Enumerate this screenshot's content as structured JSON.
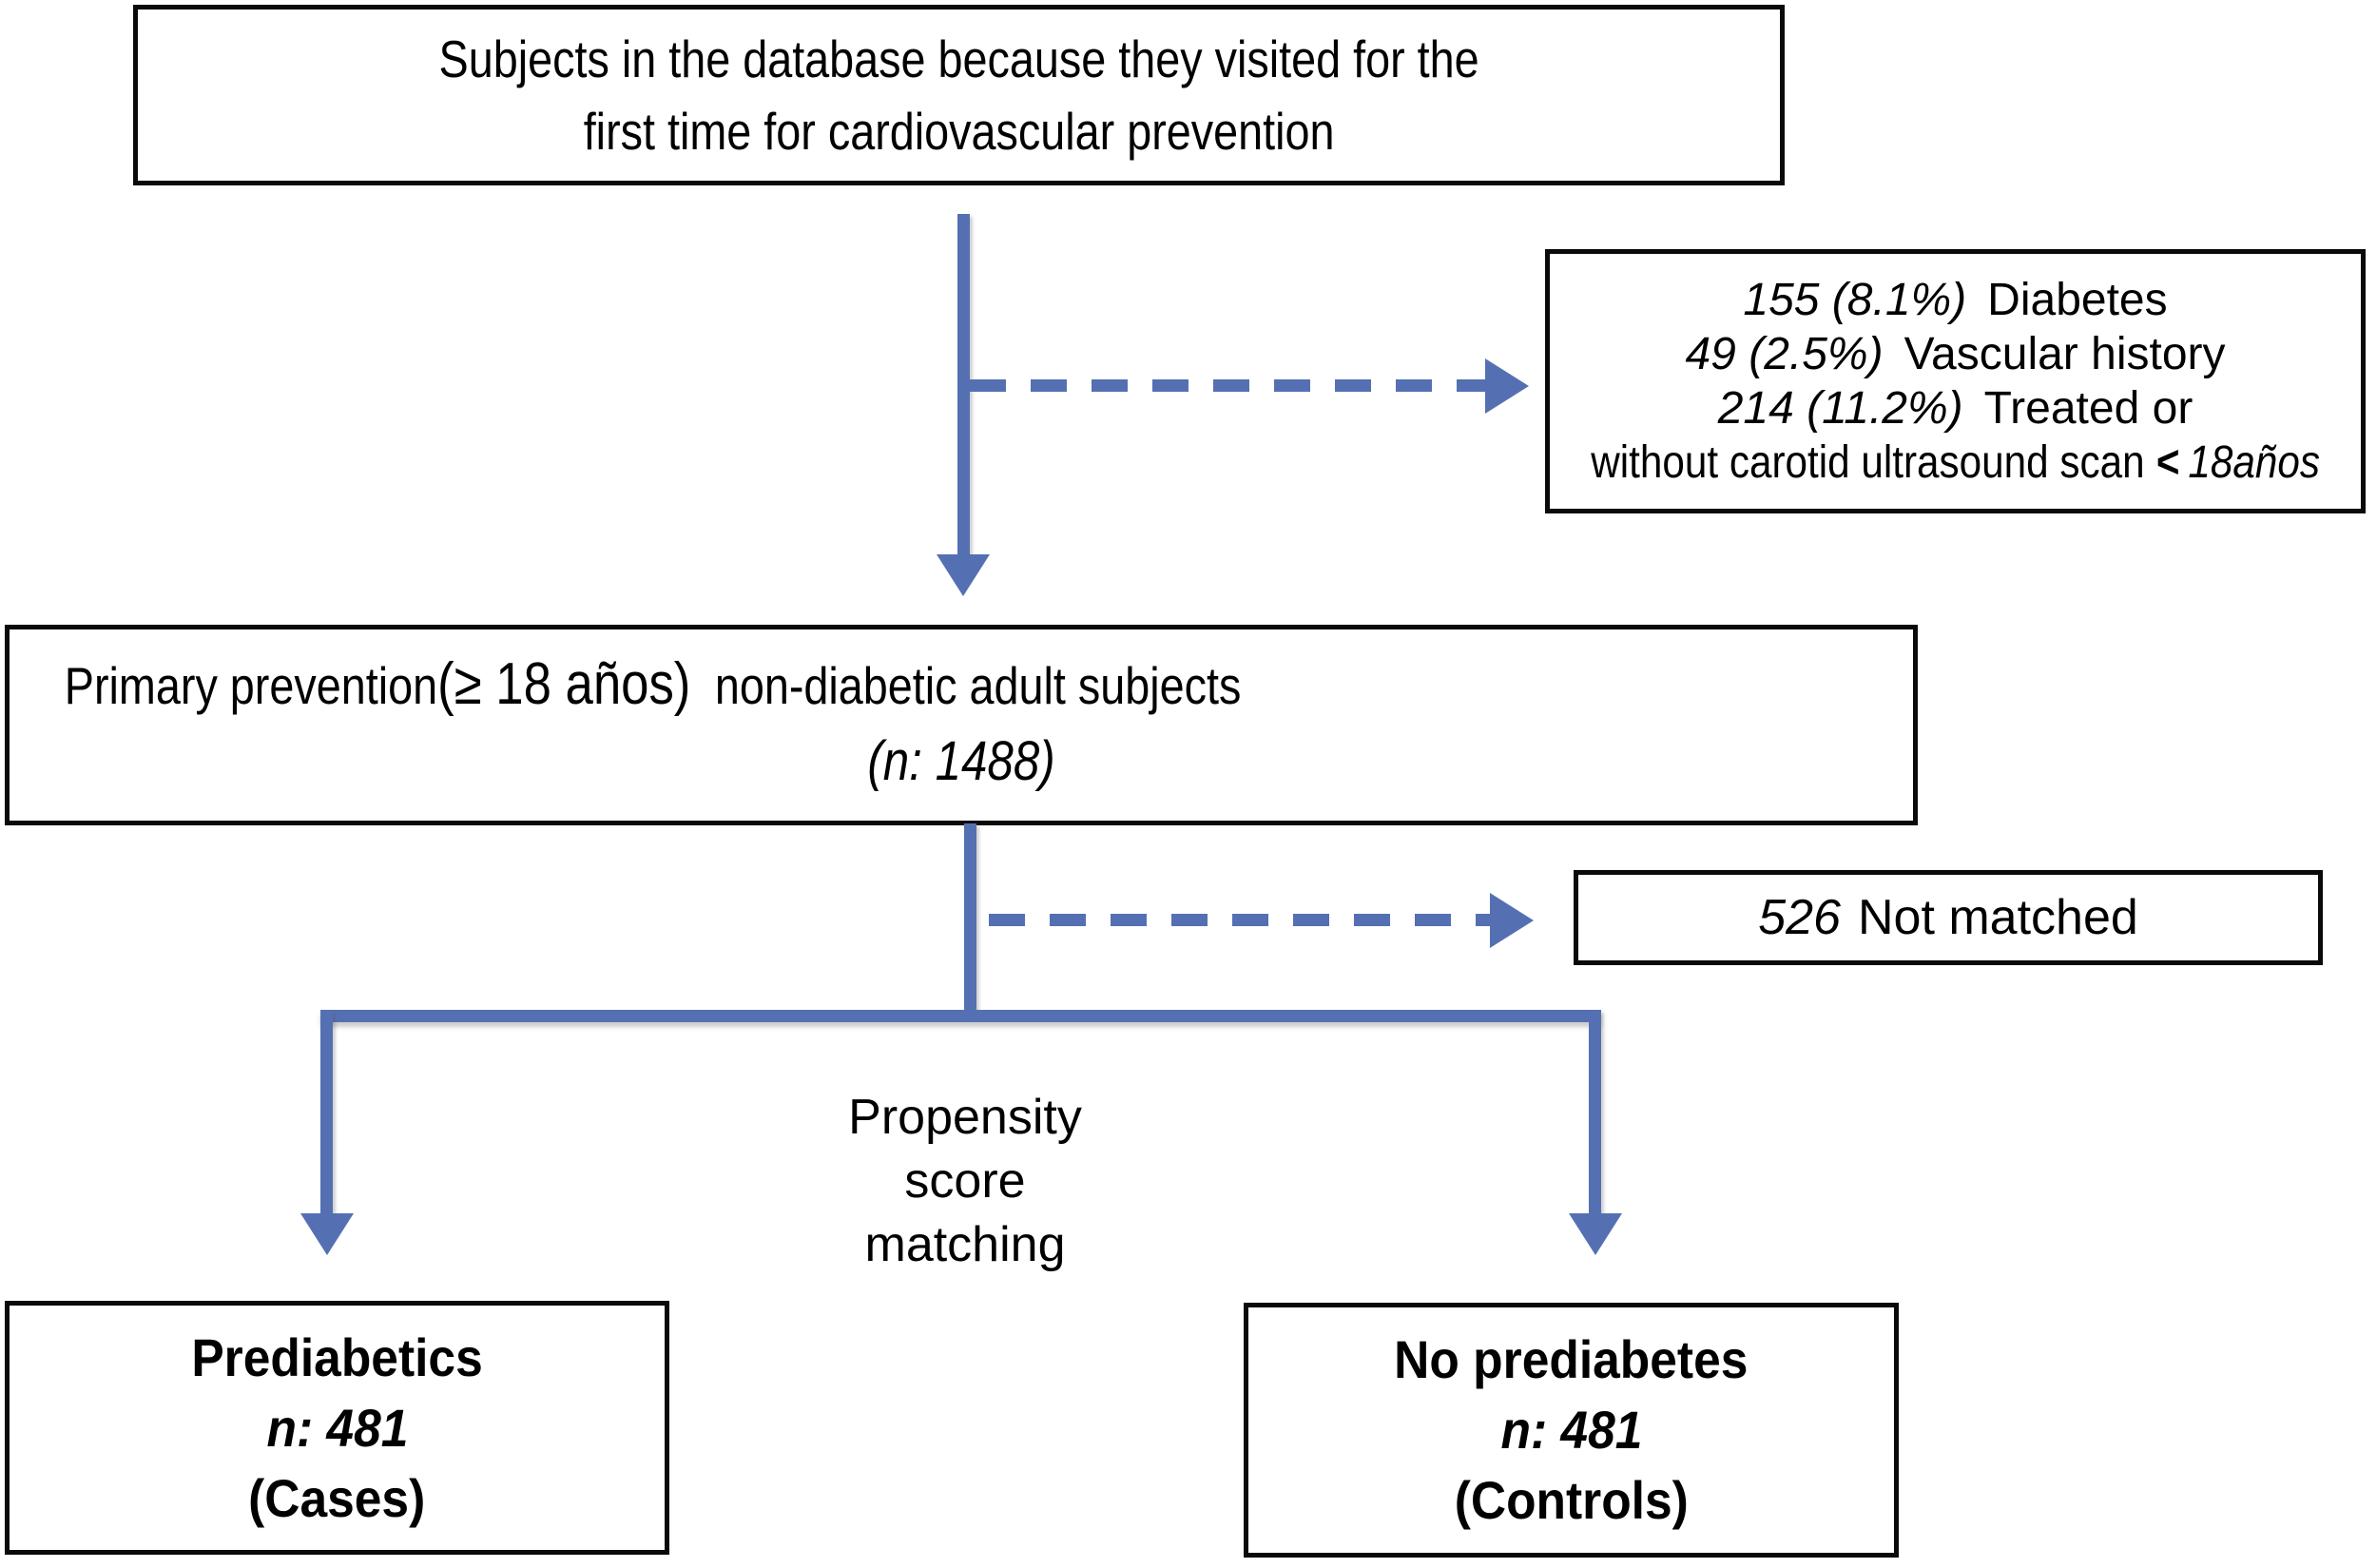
{
  "colors": {
    "arrow_blue": "#5570b2",
    "box_border": "#0a0a0a",
    "background": "#ffffff",
    "text": "#000000"
  },
  "flowchart": {
    "top_box": {
      "line1": "Subjects in the database because they visited for the",
      "line2": "first time for cardiovascular prevention"
    },
    "exclusion_box": {
      "items": [
        {
          "count": "155 (8.1%)",
          "label": "Diabetes"
        },
        {
          "count": "49 (2.5%)",
          "label": "Vascular history"
        },
        {
          "count": "214 (11.2%)",
          "label": "Treated or"
        }
      ],
      "bottom_line": {
        "text": "without carotid ultrasound scan",
        "operator": "<",
        "value": "18años"
      }
    },
    "primary_box": {
      "part1": "Primary prevention",
      "part2": "(≥ 18 años)",
      "part3": "non-diabetic adult subjects",
      "n_line": "(n: 1488)"
    },
    "not_matched_box": {
      "count": "526",
      "label": "Not matched"
    },
    "propensity_label": {
      "line1": "Propensity",
      "line2": "score",
      "line3": "matching"
    },
    "cases_box": {
      "title": "Prediabetics",
      "n_line": "n: 481",
      "subtitle": "(Cases)"
    },
    "controls_box": {
      "title": "No prediabetes",
      "n_line": "n: 481",
      "subtitle": "(Controls)"
    }
  }
}
